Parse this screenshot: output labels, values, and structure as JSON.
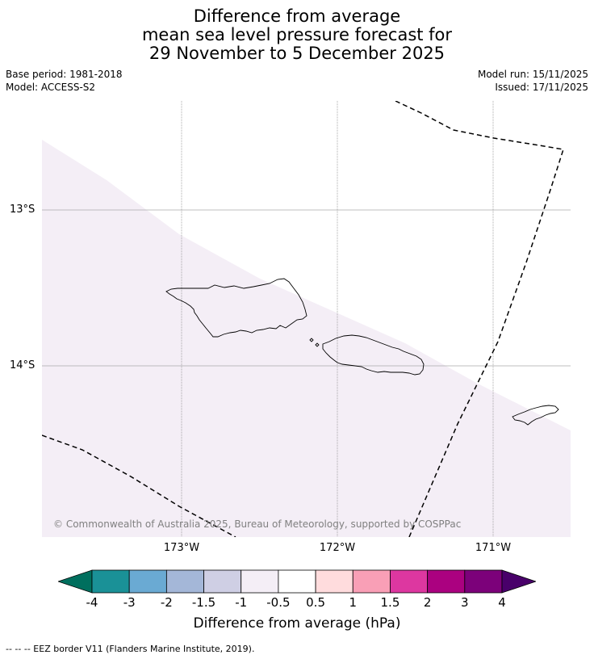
{
  "title": {
    "line1": "Difference from average",
    "line2": "mean sea level pressure forecast for",
    "line3": "29 November to 5 December 2025"
  },
  "meta": {
    "base_period": "Base period: 1981-2018",
    "model": "Model: ACCESS-S2",
    "model_run": "Model run: 15/11/2025",
    "issued": "Issued: 17/11/2025"
  },
  "map": {
    "lat_labels": [
      "13°S",
      "14°S"
    ],
    "lon_labels": [
      "173°W",
      "172°W",
      "171°W"
    ],
    "copyright": "© Commonwealth of Australia 2025, Bureau of Meteorology, supported by COSPPac",
    "shade_color": "#f4eef6",
    "coast_color": "#000000",
    "grid_color": "#aaaaaa"
  },
  "colorbar": {
    "title": "Difference from average (hPa)",
    "tick_labels": [
      "-4",
      "-3",
      "-2",
      "-1.5",
      "-1",
      "-0.5",
      "0.5",
      "1",
      "1.5",
      "2",
      "3",
      "4"
    ],
    "colors": [
      "#006f5e",
      "#1a9197",
      "#6aaad3",
      "#a4b7d8",
      "#cfcfe4",
      "#f4eef6",
      "#ffffff",
      "#ffdcdd",
      "#f99fb6",
      "#dd37a0",
      "#ab0180",
      "#7c017a",
      "#49006a"
    ]
  },
  "footer": {
    "legend_text": "--  --  -- EEZ border V11 (Flanders Marine Institute, 2019)."
  }
}
